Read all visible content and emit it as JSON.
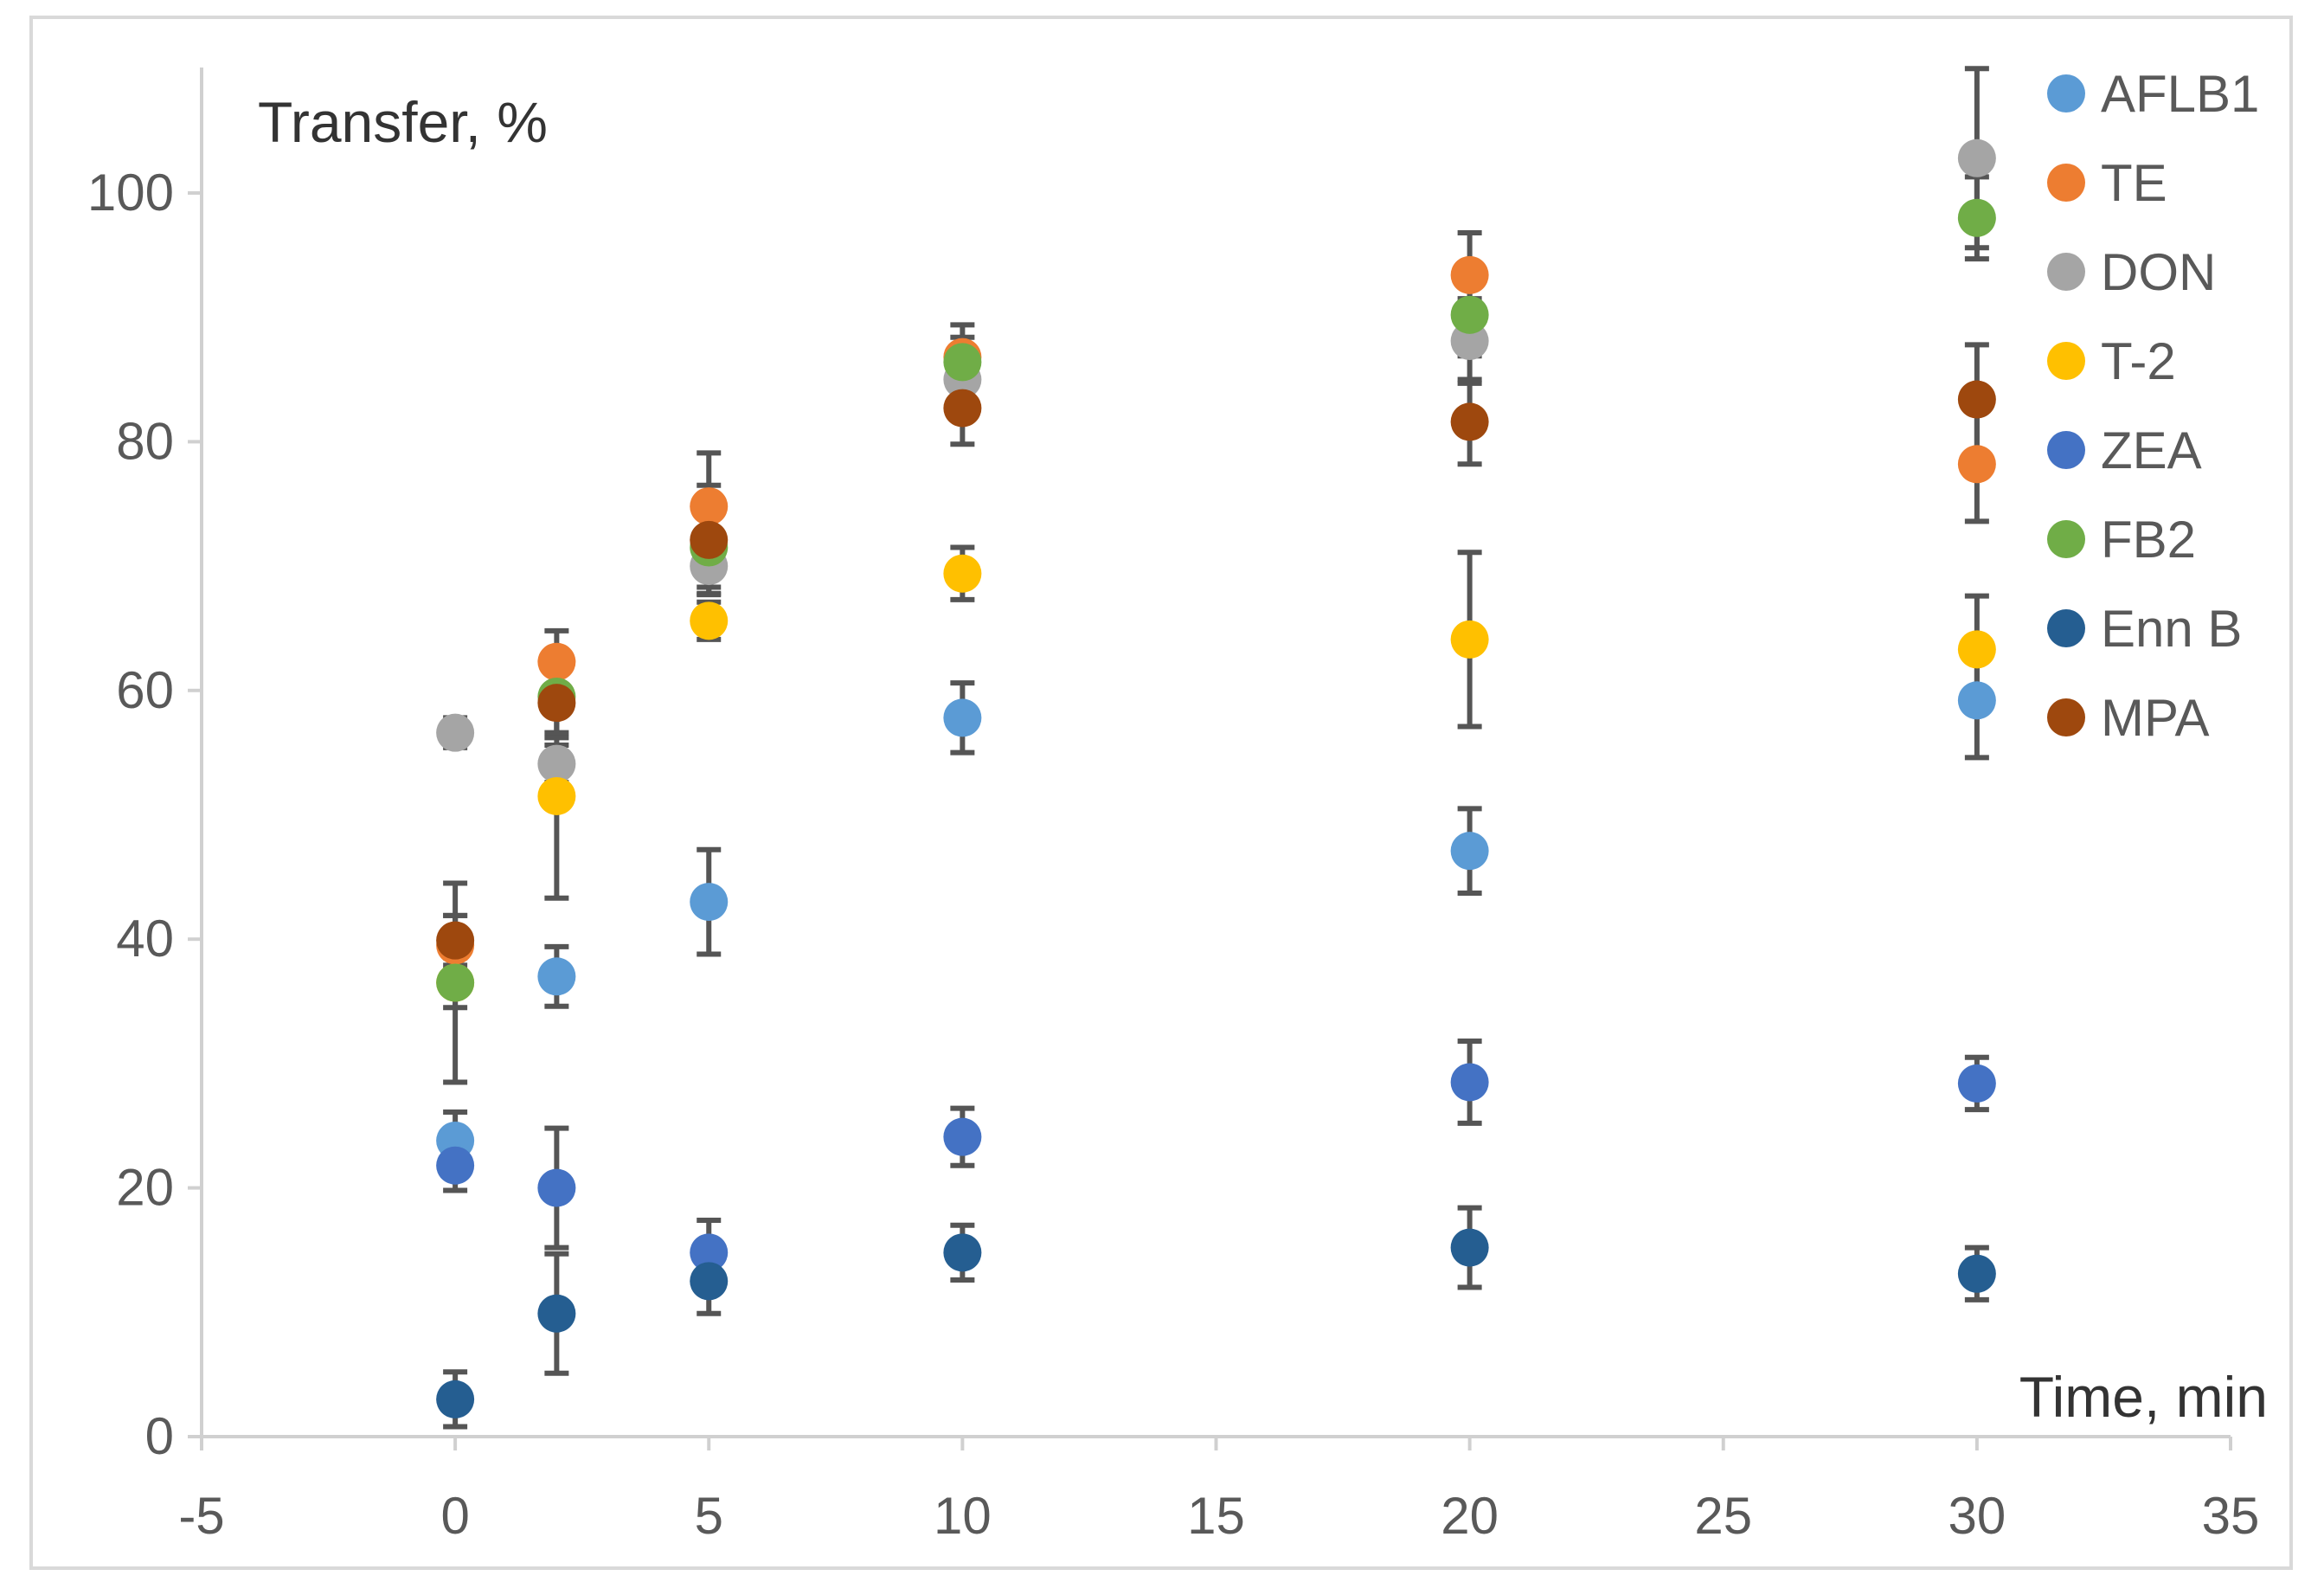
{
  "chart_data": {
    "type": "scatter",
    "title": "",
    "xlabel": "Time, min",
    "ylabel": "Transfer, %",
    "xlim": [
      -5,
      35
    ],
    "ylim": [
      0,
      110
    ],
    "x_ticks": [
      "-5",
      "0",
      "5",
      "10",
      "15",
      "20",
      "25",
      "30",
      "35"
    ],
    "y_ticks": [
      "0",
      "20",
      "40",
      "60",
      "80",
      "100"
    ],
    "grid": false,
    "legend_position": "top-right",
    "series": [
      {
        "name": "AFLB1",
        "color": "#5B9BD5",
        "x": [
          0,
          2,
          5,
          10,
          20,
          30
        ],
        "y": [
          23.8,
          37.0,
          43.0,
          57.8,
          47.1,
          59.2
        ],
        "err": [
          2.3,
          2.4,
          4.2,
          2.8,
          3.4,
          4.6
        ]
      },
      {
        "name": "TE",
        "color": "#ED7D31",
        "x": [
          0,
          2,
          5,
          10,
          20,
          30
        ],
        "y": [
          39.5,
          62.3,
          74.8,
          86.8,
          93.4,
          78.2
        ],
        "err": [
          2.4,
          2.5,
          4.3,
          2.6,
          3.4,
          4.6
        ]
      },
      {
        "name": "DON",
        "color": "#A5A5A5",
        "x": [
          0,
          2,
          5,
          10,
          20,
          30
        ],
        "y": [
          56.6,
          54.1,
          70.0,
          85.0,
          88.1,
          102.8
        ],
        "err": [
          1.2,
          1.5,
          2.2,
          1.5,
          3.4,
          7.2
        ]
      },
      {
        "name": "T-2",
        "color": "#FFC000",
        "x": [
          0,
          2,
          5,
          10,
          20,
          30
        ],
        "y": [
          36.5,
          51.5,
          65.6,
          69.4,
          64.1,
          63.3
        ],
        "err": [
          2.0,
          8.2,
          1.5,
          2.1,
          7.0,
          4.3
        ]
      },
      {
        "name": "ZEA",
        "color": "#4472C4",
        "x": [
          0,
          2,
          5,
          10,
          20,
          30
        ],
        "y": [
          21.8,
          20.0,
          14.8,
          24.1,
          28.5,
          28.4
        ],
        "err": [
          2.0,
          4.8,
          2.6,
          2.3,
          3.3,
          2.1
        ]
      },
      {
        "name": "FB2",
        "color": "#70AD47",
        "x": [
          0,
          2,
          5,
          10,
          20,
          30
        ],
        "y": [
          36.5,
          59.5,
          71.5,
          86.4,
          90.2,
          98.0
        ],
        "err": [
          8.0,
          3.3,
          3.2,
          2.0,
          3.3,
          3.3
        ]
      },
      {
        "name": "Enn B",
        "color": "#255E91",
        "x": [
          0,
          2,
          5,
          10,
          20,
          30
        ],
        "y": [
          3.0,
          9.9,
          12.5,
          14.8,
          15.2,
          13.1
        ],
        "err": [
          2.2,
          4.8,
          2.6,
          2.2,
          3.2,
          2.1
        ]
      },
      {
        "name": "MPA",
        "color": "#9E480E",
        "x": [
          0,
          2,
          5,
          10,
          20,
          30
        ],
        "y": [
          39.9,
          59.0,
          72.1,
          82.7,
          81.6,
          83.4
        ],
        "err": [
          2.0,
          2.4,
          4.4,
          2.9,
          3.4,
          4.4
        ]
      }
    ]
  }
}
